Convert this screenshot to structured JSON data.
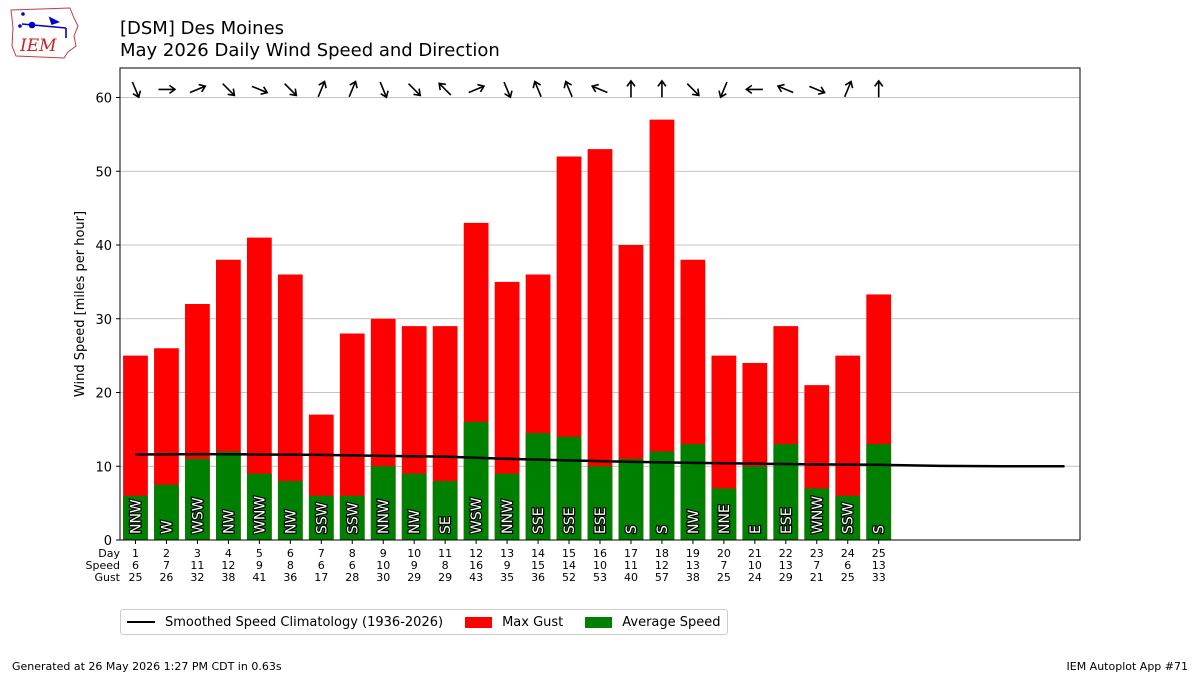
{
  "header": {
    "title_line1": "[DSM] Des Moines",
    "title_line2": "May 2026 Daily Wind Speed and Direction",
    "logo_text": "IEM"
  },
  "chart_data": {
    "type": "bar",
    "ylabel": "Wind Speed [miles per hour]",
    "ylim": [
      0,
      64
    ],
    "yticks": [
      0,
      10,
      20,
      30,
      40,
      50,
      60
    ],
    "xlim": [
      0.5,
      31.5
    ],
    "grid": "horizontal",
    "row_labels": [
      "Day",
      "Speed",
      "Gust"
    ],
    "days": [
      1,
      2,
      3,
      4,
      5,
      6,
      7,
      8,
      9,
      10,
      11,
      12,
      13,
      14,
      15,
      16,
      17,
      18,
      19,
      20,
      21,
      22,
      23,
      24,
      25
    ],
    "avg_speed": [
      6,
      7.5,
      11,
      12,
      9,
      8,
      6,
      6,
      10,
      9,
      8,
      16,
      9,
      14.5,
      14,
      10,
      11,
      12,
      13,
      7,
      10,
      13,
      7,
      6,
      13
    ],
    "max_gust": [
      25,
      26,
      32,
      38,
      41,
      36,
      17,
      28,
      30,
      29,
      29,
      43,
      35,
      36,
      52,
      53,
      40,
      57,
      38,
      25,
      24,
      29,
      21,
      25,
      33.3
    ],
    "speed_labels": [
      "6",
      "7",
      "11",
      "12",
      "9",
      "8",
      "6",
      "6",
      "10",
      "9",
      "8",
      "16",
      "9",
      "15",
      "14",
      "10",
      "11",
      "12",
      "13",
      "7",
      "10",
      "13",
      "7",
      "6",
      "13"
    ],
    "gust_labels": [
      "25",
      "26",
      "32",
      "38",
      "41",
      "36",
      "17",
      "28",
      "30",
      "29",
      "29",
      "43",
      "35",
      "36",
      "52",
      "53",
      "40",
      "57",
      "38",
      "25",
      "24",
      "29",
      "21",
      "25",
      "33"
    ],
    "directions": [
      "NNW",
      "W",
      "WSW",
      "NW",
      "WNW",
      "NW",
      "SSW",
      "SSW",
      "NNW",
      "NW",
      "SE",
      "WSW",
      "NNW",
      "SSE",
      "SSE",
      "ESE",
      "S",
      "S",
      "NW",
      "NNE",
      "E",
      "ESE",
      "WNW",
      "SSW",
      "S"
    ],
    "climatology": {
      "x": [
        1,
        3,
        5,
        7,
        9,
        11,
        13,
        15,
        17,
        19,
        21,
        23,
        25,
        27,
        29,
        31
      ],
      "y": [
        11.6,
        11.65,
        11.6,
        11.55,
        11.4,
        11.3,
        11.0,
        10.8,
        10.6,
        10.45,
        10.35,
        10.25,
        10.2,
        10.05,
        10.0,
        10.0
      ]
    },
    "legend": [
      {
        "label": "Smoothed Speed Climatology (1936-2026)",
        "color": "#000000",
        "kind": "line"
      },
      {
        "label": "Max Gust",
        "color": "#ff0000",
        "kind": "box"
      },
      {
        "label": "Average Speed",
        "color": "#008000",
        "kind": "box"
      }
    ]
  },
  "footer": {
    "generated": "Generated at 26 May 2026 1:27 PM CDT in 0.63s",
    "app": "IEM Autoplot App #71"
  }
}
